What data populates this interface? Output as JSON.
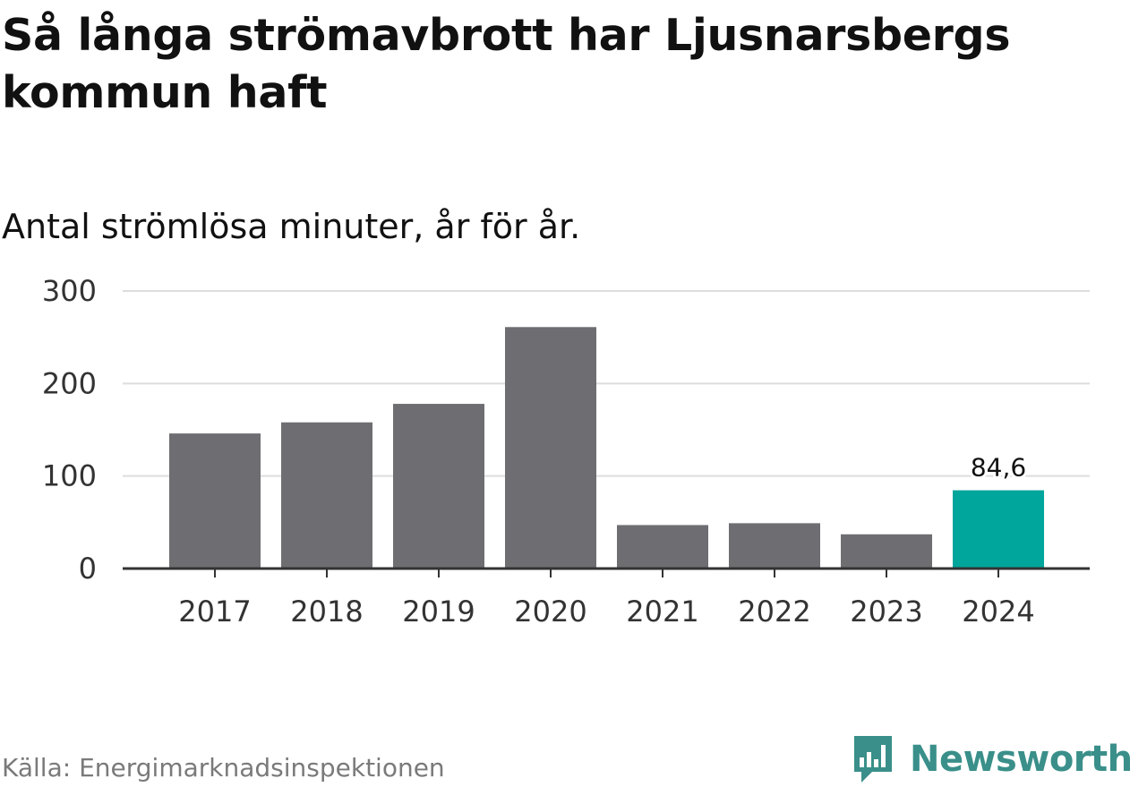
{
  "title": "Så långa strömavbrott har Ljusnarsbergs kommun haft",
  "subtitle": "Antal strömlösa minuter, år för år.",
  "source": "Källa: Energimarknadsinspektionen",
  "brand": "Newsworthy",
  "colors": {
    "bar": "#6e6d72",
    "highlight": "#00a59b",
    "grid": "#dddddd",
    "axis": "#333333",
    "brand": "#3a8f8a"
  },
  "chart_data": {
    "type": "bar",
    "categories": [
      "2017",
      "2018",
      "2019",
      "2020",
      "2021",
      "2022",
      "2023",
      "2024"
    ],
    "values": [
      146,
      158,
      178,
      261,
      47,
      49,
      37,
      84.6
    ],
    "highlight_index": 7,
    "data_label": "84,6",
    "yticks": [
      "0",
      "100",
      "200",
      "300"
    ],
    "ylim": [
      0,
      300
    ],
    "xlabel": "",
    "ylabel": ""
  }
}
